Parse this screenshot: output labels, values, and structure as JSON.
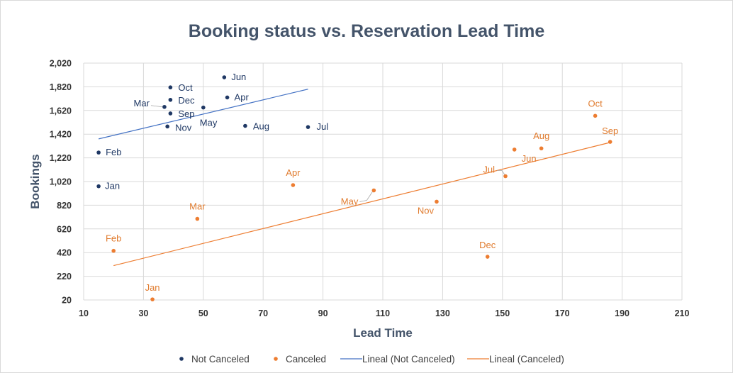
{
  "chart_data": {
    "type": "scatter",
    "title": "Booking status vs. Reservation Lead Time",
    "xlabel": "Lead Time",
    "ylabel": "Bookings",
    "xlim": [
      10,
      210
    ],
    "ylim": [
      20,
      2020
    ],
    "x_ticks": [
      "10",
      "30",
      "50",
      "70",
      "90",
      "110",
      "130",
      "150",
      "170",
      "190",
      "210"
    ],
    "y_ticks": [
      "20",
      "220",
      "420",
      "620",
      "820",
      "1,020",
      "1,220",
      "1,420",
      "1,620",
      "1,820",
      "2,020"
    ],
    "grid": true,
    "legend_position": "bottom",
    "colors": {
      "not_canceled": "#1f3864",
      "canceled": "#ed7d31",
      "trend_not_canceled": "#4472c4",
      "trend_canceled": "#ed7d31"
    },
    "series": [
      {
        "name": "Not Canceled",
        "points": [
          {
            "label": "Jan",
            "x": 15,
            "y": 980
          },
          {
            "label": "Feb",
            "x": 15,
            "y": 1265
          },
          {
            "label": "Mar",
            "x": 37,
            "y": 1650
          },
          {
            "label": "Apr",
            "x": 58,
            "y": 1730
          },
          {
            "label": "May",
            "x": 50,
            "y": 1645
          },
          {
            "label": "Jun",
            "x": 57,
            "y": 1900
          },
          {
            "label": "Jul",
            "x": 85,
            "y": 1480
          },
          {
            "label": "Aug",
            "x": 64,
            "y": 1490
          },
          {
            "label": "Sep",
            "x": 39,
            "y": 1595
          },
          {
            "label": "Oct",
            "x": 39,
            "y": 1815
          },
          {
            "label": "Nov",
            "x": 38,
            "y": 1485
          },
          {
            "label": "Dec",
            "x": 39,
            "y": 1710
          }
        ]
      },
      {
        "name": "Canceled",
        "points": [
          {
            "label": "Jan",
            "x": 33,
            "y": 25
          },
          {
            "label": "Feb",
            "x": 20,
            "y": 435
          },
          {
            "label": "Mar",
            "x": 48,
            "y": 705
          },
          {
            "label": "Apr",
            "x": 80,
            "y": 990
          },
          {
            "label": "May",
            "x": 107,
            "y": 945
          },
          {
            "label": "Jun",
            "x": 154,
            "y": 1290
          },
          {
            "label": "Jul",
            "x": 151,
            "y": 1065
          },
          {
            "label": "Aug",
            "x": 163,
            "y": 1300
          },
          {
            "label": "Sep",
            "x": 186,
            "y": 1355
          },
          {
            "label": "Oct",
            "x": 181,
            "y": 1575
          },
          {
            "label": "Nov",
            "x": 128,
            "y": 850
          },
          {
            "label": "Dec",
            "x": 145,
            "y": 385
          }
        ]
      }
    ],
    "trendlines": [
      {
        "name": "Lineal (Not Canceled)",
        "x": [
          15,
          85
        ],
        "y": [
          1380,
          1800
        ]
      },
      {
        "name": "Lineal (Canceled)",
        "x": [
          20,
          186
        ],
        "y": [
          310,
          1350
        ]
      }
    ]
  }
}
